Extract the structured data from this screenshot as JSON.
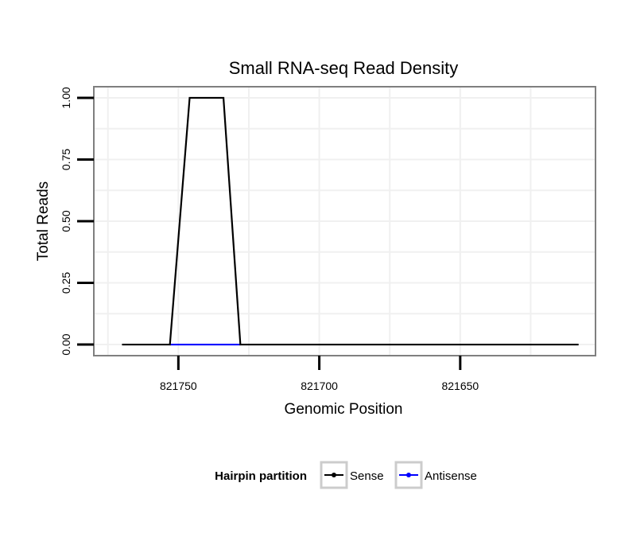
{
  "chart_data": {
    "type": "line",
    "title": "Small RNA-seq Read Density",
    "xlabel": "Genomic Position",
    "ylabel": "Total Reads",
    "x_reversed": true,
    "xlim": [
      821780,
      821602
    ],
    "ylim": [
      -0.045,
      1.045
    ],
    "x_ticks": [
      821750,
      821700,
      821650
    ],
    "x_tick_labels": [
      "821750",
      "821700",
      "821650"
    ],
    "y_ticks": [
      0,
      0.25,
      0.5,
      0.75,
      1.0
    ],
    "y_tick_labels": [
      "0.00",
      "0.25",
      "0.50",
      "0.75",
      "1.00"
    ],
    "grid": true,
    "legend": {
      "title": "Hairpin partition",
      "position": "bottom",
      "entries": [
        "Sense",
        "Antisense"
      ]
    },
    "series": [
      {
        "name": "Sense",
        "color": "#000000",
        "x": [
          821770,
          821753,
          821746,
          821734,
          821728,
          821608
        ],
        "y": [
          0,
          0,
          1,
          1,
          0,
          0
        ]
      },
      {
        "name": "Antisense",
        "color": "#0000ff",
        "x": [
          821753,
          821728
        ],
        "y": [
          0,
          0
        ]
      }
    ]
  }
}
